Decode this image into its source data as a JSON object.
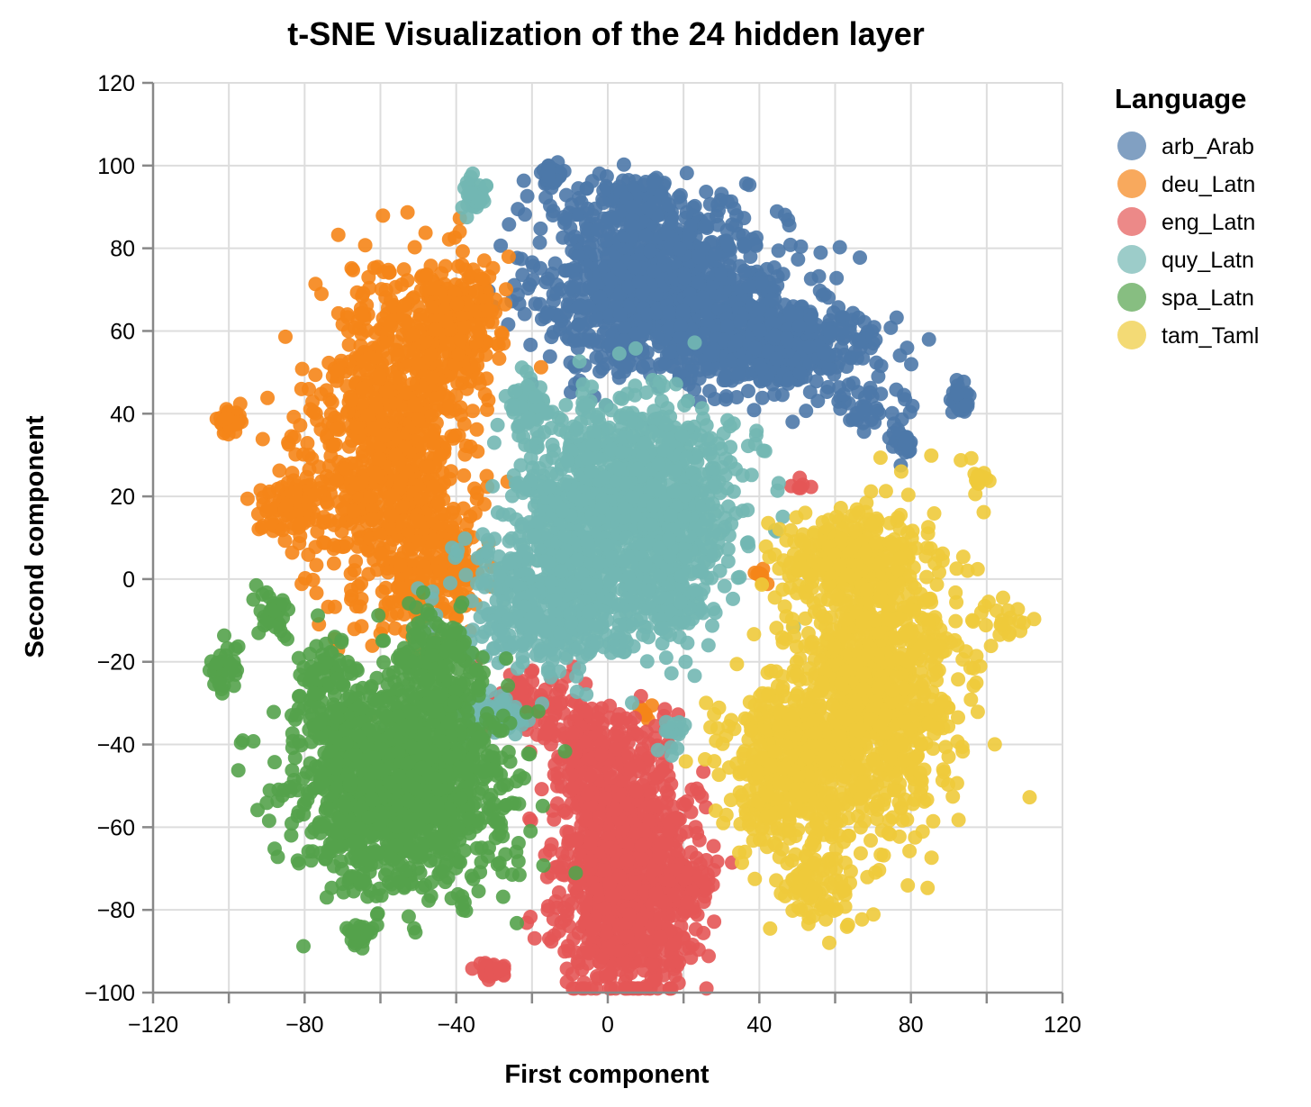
{
  "chart_data": {
    "type": "scatter",
    "title": "t-SNE Visualization of the 24 hidden layer",
    "xlabel": "First component",
    "ylabel": "Second component",
    "xlim": [
      -120,
      120
    ],
    "ylim": [
      -100,
      120
    ],
    "x_ticks": [
      -120,
      -100,
      -80,
      -60,
      -40,
      -20,
      0,
      20,
      40,
      60,
      80,
      100,
      120
    ],
    "x_tick_labels": [
      "−120",
      "",
      "−80",
      "",
      "−40",
      "",
      "0",
      "",
      "40",
      "",
      "80",
      "",
      "120"
    ],
    "y_ticks": [
      -100,
      -80,
      -60,
      -40,
      -20,
      0,
      20,
      40,
      60,
      80,
      100,
      120
    ],
    "y_tick_labels": [
      "−100",
      "−80",
      "−60",
      "−40",
      "−20",
      "0",
      "20",
      "40",
      "60",
      "80",
      "100",
      "120"
    ],
    "grid": true,
    "legend": {
      "title": "Language",
      "placement": "right"
    },
    "series": [
      {
        "name": "arb_Arab",
        "color": "#4c78a8",
        "clusters": [
          {
            "cx": 15,
            "cy": 70,
            "sx": 16,
            "sy": 10,
            "n": 1100
          },
          {
            "cx": 45,
            "cy": 56,
            "sx": 13,
            "sy": 5,
            "n": 450
          },
          {
            "cx": 5,
            "cy": 90,
            "sx": 10,
            "sy": 4,
            "n": 120
          },
          {
            "cx": -15,
            "cy": 98,
            "sx": 1.5,
            "sy": 1.5,
            "n": 35
          },
          {
            "cx": 93,
            "cy": 43,
            "sx": 1.5,
            "sy": 2,
            "n": 30
          },
          {
            "cx": 78,
            "cy": 33,
            "sx": 2,
            "sy": 2.5,
            "n": 25
          },
          {
            "cx": 68,
            "cy": 42,
            "sx": 6,
            "sy": 4,
            "n": 40
          }
        ]
      },
      {
        "name": "deu_Latn",
        "color": "#f58518",
        "clusters": [
          {
            "cx": -58,
            "cy": 32,
            "sx": 10,
            "sy": 20,
            "n": 900
          },
          {
            "cx": -40,
            "cy": 62,
            "sx": 6,
            "sy": 8,
            "n": 250
          },
          {
            "cx": -84,
            "cy": 18,
            "sx": 4,
            "sy": 4,
            "n": 90
          },
          {
            "cx": -100,
            "cy": 38,
            "sx": 1.5,
            "sy": 2,
            "n": 30
          },
          {
            "cx": -45,
            "cy": 4,
            "sx": 6,
            "sy": 8,
            "n": 150
          },
          {
            "cx": 40,
            "cy": 1,
            "sx": 1,
            "sy": 1,
            "n": 8
          },
          {
            "cx": 11,
            "cy": -32,
            "sx": 2,
            "sy": 1,
            "n": 8
          }
        ]
      },
      {
        "name": "eng_Latn",
        "color": "#e45756",
        "clusters": [
          {
            "cx": 5,
            "cy": -70,
            "sx": 9,
            "sy": 14,
            "n": 1100
          },
          {
            "cx": -5,
            "cy": -40,
            "sx": 6,
            "sy": 6,
            "n": 150
          },
          {
            "cx": -20,
            "cy": -30,
            "sx": 5,
            "sy": 4,
            "n": 80
          },
          {
            "cx": -30,
            "cy": -95,
            "sx": 2,
            "sy": 1.2,
            "n": 30
          },
          {
            "cx": 50,
            "cy": 22,
            "sx": 1.5,
            "sy": 1,
            "n": 6
          },
          {
            "cx": 20,
            "cy": -75,
            "sx": 4,
            "sy": 3,
            "n": 60
          }
        ]
      },
      {
        "name": "quy_Latn",
        "color": "#72b7b2",
        "clusters": [
          {
            "cx": 5,
            "cy": 20,
            "sx": 14,
            "sy": 12,
            "n": 1000
          },
          {
            "cx": -15,
            "cy": -5,
            "sx": 12,
            "sy": 9,
            "n": 500
          },
          {
            "cx": 15,
            "cy": 0,
            "sx": 8,
            "sy": 9,
            "n": 200
          },
          {
            "cx": -22,
            "cy": 42,
            "sx": 3,
            "sy": 3,
            "n": 60
          },
          {
            "cx": -35,
            "cy": 93,
            "sx": 1.5,
            "sy": 2,
            "n": 30
          },
          {
            "cx": -30,
            "cy": -33,
            "sx": 6,
            "sy": 2,
            "n": 70
          },
          {
            "cx": 18,
            "cy": -38,
            "sx": 2,
            "sy": 2,
            "n": 15
          }
        ]
      },
      {
        "name": "spa_Latn",
        "color": "#54a24b",
        "clusters": [
          {
            "cx": -55,
            "cy": -50,
            "sx": 14,
            "sy": 12,
            "n": 1300
          },
          {
            "cx": -45,
            "cy": -20,
            "sx": 6,
            "sy": 6,
            "n": 150
          },
          {
            "cx": -89,
            "cy": -8,
            "sx": 2.5,
            "sy": 3,
            "n": 35
          },
          {
            "cx": -102,
            "cy": -22,
            "sx": 2,
            "sy": 3,
            "n": 35
          },
          {
            "cx": -66,
            "cy": -86,
            "sx": 1.5,
            "sy": 1.5,
            "n": 30
          },
          {
            "cx": -75,
            "cy": -25,
            "sx": 4,
            "sy": 6,
            "n": 80
          }
        ]
      },
      {
        "name": "tam_Taml",
        "color": "#eeca3b",
        "clusters": [
          {
            "cx": 70,
            "cy": -25,
            "sx": 11,
            "sy": 18,
            "n": 1000
          },
          {
            "cx": 48,
            "cy": -45,
            "sx": 9,
            "sy": 11,
            "n": 500
          },
          {
            "cx": 63,
            "cy": 5,
            "sx": 9,
            "sy": 5,
            "n": 250
          },
          {
            "cx": 55,
            "cy": -75,
            "sx": 5,
            "sy": 5,
            "n": 80
          },
          {
            "cx": 98,
            "cy": 24,
            "sx": 1,
            "sy": 1.5,
            "n": 15
          },
          {
            "cx": 104,
            "cy": -10,
            "sx": 3,
            "sy": 3,
            "n": 20
          }
        ]
      }
    ]
  }
}
